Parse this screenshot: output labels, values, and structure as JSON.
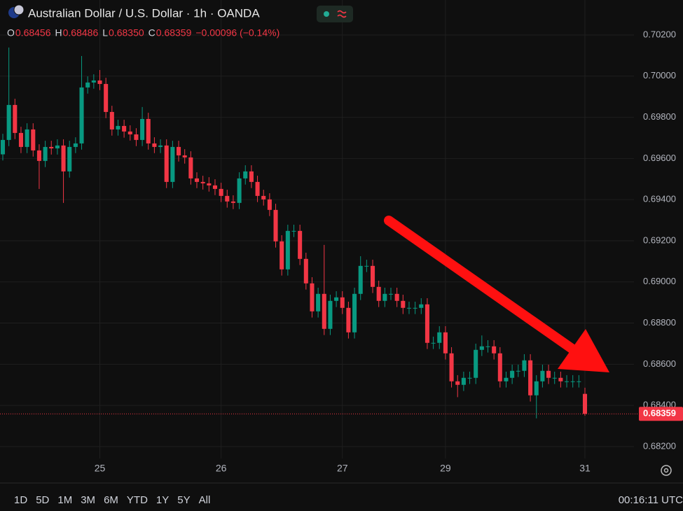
{
  "header": {
    "title": "Australian Dollar / U.S. Dollar · 1h · OANDA",
    "ohlc": [
      {
        "label": "O",
        "value": "0.68456"
      },
      {
        "label": "H",
        "value": "0.68486"
      },
      {
        "label": "L",
        "value": "0.68350"
      },
      {
        "label": "C",
        "value": "0.68359"
      }
    ],
    "change": "−0.00096 (−0.14%)"
  },
  "chart_data": {
    "type": "candlestick",
    "up_color": "#089981",
    "down_color": "#f23645",
    "grid": true,
    "categories": [
      null,
      null,
      null,
      null,
      null,
      null,
      null,
      null,
      null,
      null,
      null,
      null,
      null,
      null,
      null,
      null,
      "25",
      null,
      null,
      null,
      null,
      null,
      null,
      null,
      null,
      null,
      null,
      null,
      null,
      null,
      null,
      null,
      null,
      null,
      null,
      null,
      "26",
      null,
      null,
      null,
      null,
      null,
      null,
      null,
      null,
      null,
      null,
      null,
      null,
      null,
      null,
      null,
      null,
      null,
      null,
      null,
      "27",
      null,
      null,
      null,
      null,
      null,
      null,
      null,
      null,
      null,
      null,
      null,
      null,
      null,
      null,
      null,
      null,
      "29",
      null,
      null,
      null,
      null,
      null,
      null,
      null,
      null,
      null,
      null,
      null,
      null,
      null,
      null,
      null,
      null,
      null,
      null,
      null,
      null,
      null,
      null,
      "31"
    ],
    "open": [
      0.6962,
      0.6969,
      0.6986,
      0.69724,
      0.69656,
      0.69741,
      0.69639,
      0.69588,
      0.69656,
      0.69649,
      0.69663,
      0.69537,
      0.69656,
      0.69673,
      0.69945,
      0.69969,
      0.69979,
      0.69962,
      0.69826,
      0.69741,
      0.69758,
      0.69731,
      0.69717,
      0.6969,
      0.69792,
      0.69673,
      0.69656,
      0.69663,
      0.69486,
      0.69656,
      0.69615,
      0.69605,
      0.69503,
      0.69486,
      0.69479,
      0.69469,
      0.69452,
      0.69418,
      0.69391,
      0.69384,
      0.69503,
      0.69537,
      0.69486,
      0.69418,
      0.69401,
      0.6935,
      0.69197,
      0.69061,
      0.69248,
      0.69248,
      0.69112,
      0.68993,
      0.68857,
      0.68942,
      0.68772,
      0.68908,
      0.68925,
      0.68874,
      0.68755,
      0.68942,
      0.69078,
      0.69078,
      0.68976,
      0.68908,
      0.68942,
      0.68942,
      0.68908,
      0.68874,
      0.68874,
      0.68874,
      0.68891,
      0.68704,
      0.68704,
      0.68755,
      0.68653,
      0.68517,
      0.685,
      0.68534,
      0.68534,
      0.6867,
      0.68687,
      0.68687,
      0.68653,
      0.68517,
      0.68534,
      0.68568,
      0.68568,
      0.68619,
      0.68449,
      0.68517,
      0.68568,
      0.68534,
      0.68534,
      0.68517,
      0.68517,
      0.68517,
      0.68456
    ],
    "high": [
      0.6972,
      0.70139,
      0.6989,
      0.69754,
      0.69771,
      0.69771,
      0.69669,
      0.69686,
      0.69686,
      0.69693,
      0.69693,
      0.69686,
      0.69703,
      0.70098,
      0.69999,
      0.70009,
      0.7003,
      0.69992,
      0.69856,
      0.69788,
      0.69788,
      0.69761,
      0.69747,
      0.6985,
      0.69822,
      0.69703,
      0.69693,
      0.69693,
      0.69686,
      0.69686,
      0.69645,
      0.69635,
      0.69533,
      0.69516,
      0.69509,
      0.69499,
      0.69482,
      0.69448,
      0.69421,
      0.69533,
      0.69567,
      0.69567,
      0.69516,
      0.69448,
      0.69431,
      0.6938,
      0.69227,
      0.69278,
      0.69278,
      0.69278,
      0.69142,
      0.69023,
      0.68972,
      0.6918,
      0.68938,
      0.68955,
      0.68955,
      0.68904,
      0.68972,
      0.69125,
      0.69108,
      0.69108,
      0.69006,
      0.68972,
      0.68972,
      0.68972,
      0.68938,
      0.68904,
      0.68904,
      0.68921,
      0.68921,
      0.68734,
      0.68785,
      0.68785,
      0.68683,
      0.68547,
      0.68564,
      0.68564,
      0.687,
      0.6874,
      0.68717,
      0.68717,
      0.68683,
      0.68564,
      0.68598,
      0.68598,
      0.68649,
      0.68649,
      0.68547,
      0.68598,
      0.68598,
      0.68564,
      0.68564,
      0.68547,
      0.68547,
      0.68547,
      0.68486
    ],
    "low": [
      0.6959,
      0.6966,
      0.69694,
      0.69626,
      0.69626,
      0.69609,
      0.69452,
      0.69558,
      0.69619,
      0.69619,
      0.69384,
      0.69507,
      0.69626,
      0.69643,
      0.69915,
      0.69939,
      0.69932,
      0.69796,
      0.69711,
      0.69711,
      0.69701,
      0.69687,
      0.6966,
      0.6966,
      0.69643,
      0.69626,
      0.69626,
      0.69456,
      0.69456,
      0.69585,
      0.69575,
      0.69473,
      0.69456,
      0.69449,
      0.69439,
      0.69422,
      0.69388,
      0.69361,
      0.69354,
      0.69354,
      0.69473,
      0.69456,
      0.69388,
      0.69371,
      0.6932,
      0.69167,
      0.69031,
      0.69031,
      0.69218,
      0.69082,
      0.68963,
      0.68827,
      0.68827,
      0.68742,
      0.68742,
      0.68878,
      0.68844,
      0.68725,
      0.68725,
      0.68912,
      0.69048,
      0.68946,
      0.68878,
      0.68878,
      0.68912,
      0.68878,
      0.68844,
      0.68844,
      0.68844,
      0.68844,
      0.68674,
      0.68674,
      0.68674,
      0.68623,
      0.68487,
      0.6844,
      0.6847,
      0.68504,
      0.68504,
      0.6864,
      0.68657,
      0.68623,
      0.68487,
      0.68487,
      0.68504,
      0.68538,
      0.68538,
      0.68419,
      0.68337,
      0.68487,
      0.68504,
      0.68504,
      0.68487,
      0.68487,
      0.68487,
      0.68487,
      0.6835
    ],
    "close": [
      0.6969,
      0.6986,
      0.69724,
      0.69656,
      0.69741,
      0.69639,
      0.69588,
      0.69656,
      0.69649,
      0.69663,
      0.69537,
      0.69656,
      0.69673,
      0.69945,
      0.69969,
      0.69979,
      0.69962,
      0.69826,
      0.69741,
      0.69758,
      0.69731,
      0.69717,
      0.6969,
      0.69792,
      0.69673,
      0.69656,
      0.69663,
      0.69486,
      0.69656,
      0.69615,
      0.69605,
      0.69503,
      0.69486,
      0.69479,
      0.69469,
      0.69452,
      0.69418,
      0.69391,
      0.69384,
      0.69503,
      0.69537,
      0.69486,
      0.69418,
      0.69401,
      0.6935,
      0.69197,
      0.69061,
      0.69248,
      0.69248,
      0.69112,
      0.68993,
      0.68857,
      0.68942,
      0.68772,
      0.68908,
      0.68925,
      0.68874,
      0.68755,
      0.68942,
      0.69078,
      0.69078,
      0.68976,
      0.68908,
      0.68942,
      0.68942,
      0.68908,
      0.68874,
      0.68874,
      0.68874,
      0.68891,
      0.68704,
      0.68704,
      0.68755,
      0.68653,
      0.68517,
      0.685,
      0.68534,
      0.68534,
      0.6867,
      0.68687,
      0.68687,
      0.68653,
      0.68517,
      0.68534,
      0.68568,
      0.68568,
      0.68619,
      0.68449,
      0.68517,
      0.68568,
      0.68534,
      0.68534,
      0.68517,
      0.68517,
      0.68517,
      0.68517,
      0.68359
    ],
    "ylim": [
      0.68142,
      0.7037
    ],
    "yticks": [
      {
        "value": 0.682,
        "label": "0.68200"
      },
      {
        "value": 0.684,
        "label": "0.68400"
      },
      {
        "value": 0.686,
        "label": "0.68600"
      },
      {
        "value": 0.688,
        "label": "0.68800"
      },
      {
        "value": 0.69,
        "label": "0.69000"
      },
      {
        "value": 0.692,
        "label": "0.69200"
      },
      {
        "value": 0.694,
        "label": "0.69400"
      },
      {
        "value": 0.696,
        "label": "0.69600"
      },
      {
        "value": 0.698,
        "label": "0.69800"
      },
      {
        "value": 0.7,
        "label": "0.70000"
      },
      {
        "value": 0.702,
        "label": "0.70200"
      }
    ],
    "last_price_label": "0.68359"
  },
  "footer": {
    "range_buttons": [
      "1D",
      "5D",
      "1M",
      "3M",
      "6M",
      "YTD",
      "1Y",
      "5Y",
      "All"
    ],
    "clock": "00:16:11 UTC"
  }
}
